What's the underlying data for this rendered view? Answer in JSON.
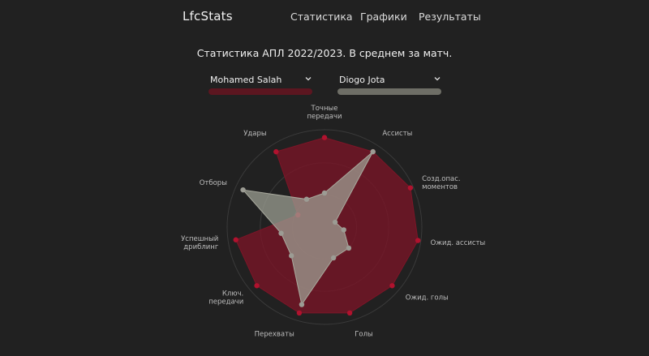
{
  "nav": {
    "logo": "LfcStats",
    "links": [
      "Статистика",
      "Графики",
      "Результаты"
    ]
  },
  "title": "Статистика АПЛ 2022/2023. В среднем за матч.",
  "players": [
    {
      "label": "Mohamed Salah",
      "color": "#6b1523",
      "bar_color": "#5c1620"
    },
    {
      "label": "Diogo Jota",
      "color": "#8b8b80",
      "bar_color": "#6e6e66"
    }
  ],
  "chart_data": {
    "type": "radar",
    "axes": [
      [
        "Точные",
        "передачи"
      ],
      [
        "Ассисты"
      ],
      [
        "Созд.опас.",
        "моментов"
      ],
      [
        "Ожид. ассисты"
      ],
      [
        "Ожид. голы"
      ],
      [
        "Голы"
      ],
      [
        "Перехваты"
      ],
      [
        "Ключ.",
        "передачи"
      ],
      [
        "Успешный",
        "дриблинг"
      ],
      [
        "Отборы"
      ],
      [
        "Удары"
      ]
    ],
    "range": [
      0,
      1
    ],
    "grid": true,
    "series": [
      {
        "name": "Mohamed Salah",
        "values": [
          0.92,
          0.92,
          0.97,
          0.97,
          0.92,
          0.92,
          0.92,
          0.92,
          0.92,
          0.3,
          0.92
        ]
      },
      {
        "name": "Diogo Jota",
        "values": [
          0.35,
          0.92,
          0.12,
          0.2,
          0.33,
          0.33,
          0.83,
          0.45,
          0.45,
          0.92,
          0.34
        ]
      }
    ]
  }
}
